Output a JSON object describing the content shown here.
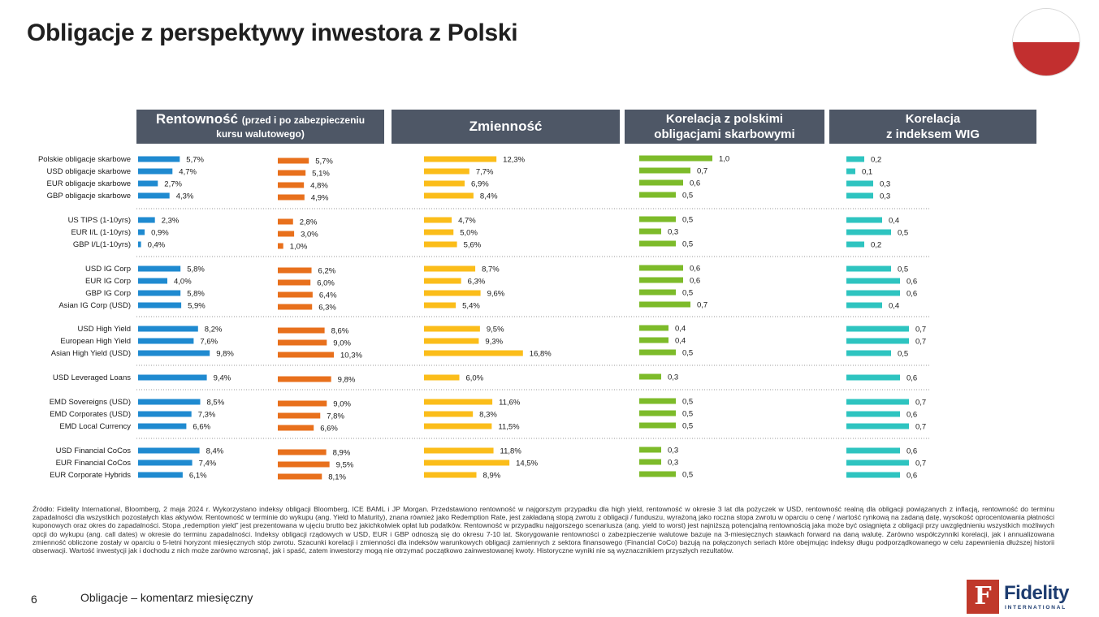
{
  "page": {
    "title": "Obligacje z perspektywy inwestora z Polski",
    "page_number": "6",
    "doc_title": "Obligacje – komentarz miesięczny",
    "logo_name": "Fidelity",
    "logo_sub": "INTERNATIONAL",
    "logo_mark": "F",
    "footnote": "Źródło: Fidelity International, Bloomberg, 2 maja 2024 r. Wykorzystano indeksy obligacji Bloomberg, ICE BAML i JP Morgan. Przedstawiono rentowność w najgorszym przypadku dla high yield, rentowność w okresie 3 lat dla pożyczek w USD, rentowność realną dla obligacji powiązanych z inflacją, rentowność do terminu zapadalności dla wszystkich pozostałych klas aktywów. Rentowność w terminie do wykupu (ang. Yield to Maturity), znana również jako Redemption Rate, jest zakładaną stopą zwrotu z obligacji / funduszu, wyrażoną jako roczna stopa zwrotu w oparciu o cenę / wartość rynkową na zadaną datę, wysokość oprocentowania płatności kuponowych oraz okres do zapadalności. Stopa „redemption yield” jest prezentowana w ujęciu brutto bez jakichkolwiek opłat lub podatków. Rentowność w przypadku najgorszego scenariusza (ang. yield to worst) jest najniższą potencjalną rentownością jaka może być osiągnięta z obligacji przy uwzględnieniu wszystkich możliwych opcji do wykupu (ang. call dates) w okresie do terminu zapadalności. Indeksy obligacji rządowych w USD, EUR i GBP odnoszą się do okresu 7-10 lat. Skorygowanie rentowności o zabezpieczenie walutowe bazuje na 3-miesięcznych stawkach forward na daną walutę. Zarówno współczynniki korelacji, jak i annualizowana zmienność obliczone zostały w oparciu o 5-letni horyzont miesięcznych stóp zwrotu. Szacunki korelacji i zmienności dla indeksów warunkowych obligacji zamiennych z sektora finansowego (Financial CoCo) bazują na  połączonych seriach które obejmując indeksy długu podporządkowanego w celu zapewnienia dłuższej historii obserwacji. Wartość inwestycji jak i dochodu z nich może zarówno wzrosnąć, jak i spaść, zatem inwestorzy mogą nie otrzymać początkowo zainwestowanej kwoty. Historyczne wyniki nie są wyznacznikiem przyszłych rezultatów."
  },
  "headers": {
    "rent_main": "Rentowność",
    "rent_sub1": "(przed i po zabezpieczeniu",
    "rent_sub2": "kursu walutowego)",
    "vol": "Zmienność",
    "corr_pl_1": "Korelacja z polskimi",
    "corr_pl_2": "obligacjami skarbowymi",
    "corr_wig_1": "Korelacja",
    "corr_wig_2": "z indeksem WIG"
  },
  "colors": {
    "header_bg": "#4e5766",
    "yield": "#1f8ad0",
    "yield_hedged": "#e8701c",
    "volatility": "#fbbd1a",
    "corr_pl": "#7dbb2a",
    "corr_wig": "#2ec4c0",
    "separator": "#9a9a9a"
  },
  "chart_data": {
    "type": "bar",
    "orientation": "horizontal",
    "categories": [
      "Polskie obligacje skarbowe",
      "USD obligacje skarbowe",
      "EUR obligacje skarbowe",
      "GBP obligacje skarbowe",
      "US TIPS (1-10yrs)",
      "EUR I/L (1-10yrs)",
      "GBP I/L(1-10yrs)",
      "USD IG Corp",
      "EUR IG Corp",
      "GBP IG Corp",
      "Asian IG Corp (USD)",
      "USD High Yield",
      "European High Yield",
      "Asian High Yield (USD)",
      "USD Leveraged Loans",
      "EMD Sovereigns (USD)",
      "EMD Corporates (USD)",
      "EMD Local Currency",
      "USD Financial CoCos",
      "EUR Financial CoCos",
      "EUR Corporate Hybrids"
    ],
    "groups": [
      4,
      3,
      4,
      3,
      1,
      3,
      3
    ],
    "series": [
      {
        "name": "Rentowność",
        "values": [
          5.7,
          4.7,
          2.7,
          4.3,
          2.3,
          0.9,
          0.4,
          5.8,
          4.0,
          5.8,
          5.9,
          8.2,
          7.6,
          9.8,
          9.4,
          8.5,
          7.3,
          6.6,
          8.4,
          7.4,
          6.1
        ],
        "labels": [
          "5,7%",
          "4,7%",
          "2,7%",
          "4,3%",
          "2,3%",
          "0,9%",
          "0,4%",
          "5,8%",
          "4,0%",
          "5,8%",
          "5,9%",
          "8,2%",
          "7,6%",
          "9,8%",
          "9,4%",
          "8,5%",
          "7,3%",
          "6,6%",
          "8,4%",
          "7,4%",
          "6,1%"
        ]
      },
      {
        "name": "Rentowność (po zabezpieczeniu kursu walutowego)",
        "values": [
          5.7,
          5.1,
          4.8,
          4.9,
          2.8,
          3.0,
          1.0,
          6.2,
          6.0,
          6.4,
          6.3,
          8.6,
          9.0,
          10.3,
          9.8,
          9.0,
          7.8,
          6.6,
          8.9,
          9.5,
          8.1
        ],
        "labels": [
          "5,7%",
          "5,1%",
          "4,8%",
          "4,9%",
          "2,8%",
          "3,0%",
          "1,0%",
          "6,2%",
          "6,0%",
          "6,4%",
          "6,3%",
          "8,6%",
          "9,0%",
          "10,3%",
          "9,8%",
          "9,0%",
          "7,8%",
          "6,6%",
          "8,9%",
          "9,5%",
          "8,1%"
        ]
      },
      {
        "name": "Zmienność",
        "values": [
          12.3,
          7.7,
          6.9,
          8.4,
          4.7,
          5.0,
          5.6,
          8.7,
          6.3,
          9.6,
          5.4,
          9.5,
          9.3,
          16.8,
          6.0,
          11.6,
          8.3,
          11.5,
          11.8,
          14.5,
          8.9
        ],
        "labels": [
          "12,3%",
          "7,7%",
          "6,9%",
          "8,4%",
          "4,7%",
          "5,0%",
          "5,6%",
          "8,7%",
          "6,3%",
          "9,6%",
          "5,4%",
          "9,5%",
          "9,3%",
          "16,8%",
          "6,0%",
          "11,6%",
          "8,3%",
          "11,5%",
          "11,8%",
          "14,5%",
          "8,9%"
        ]
      },
      {
        "name": "Korelacja z polskimi obligacjami skarbowymi",
        "values": [
          1.0,
          0.7,
          0.6,
          0.5,
          0.5,
          0.3,
          0.5,
          0.6,
          0.6,
          0.5,
          0.7,
          0.4,
          0.4,
          0.5,
          0.3,
          0.5,
          0.5,
          0.5,
          0.3,
          0.3,
          0.5
        ],
        "labels": [
          "1,0",
          "0,7",
          "0,6",
          "0,5",
          "0,5",
          "0,3",
          "0,5",
          "0,6",
          "0,6",
          "0,5",
          "0,7",
          "0,4",
          "0,4",
          "0,5",
          "0,3",
          "0,5",
          "0,5",
          "0,5",
          "0,3",
          "0,3",
          "0,5"
        ]
      },
      {
        "name": "Korelacja z indeksem WIG",
        "values": [
          0.2,
          0.1,
          0.3,
          0.3,
          0.4,
          0.5,
          0.2,
          0.5,
          0.6,
          0.6,
          0.4,
          0.7,
          0.7,
          0.5,
          0.6,
          0.7,
          0.6,
          0.7,
          0.6,
          0.7,
          0.6
        ],
        "labels": [
          "0,2",
          "0,1",
          "0,3",
          "0,3",
          "0,4",
          "0,5",
          "0,2",
          "0,5",
          "0,6",
          "0,6",
          "0,4",
          "0,7",
          "0,7",
          "0,5",
          "0,6",
          "0,7",
          "0,6",
          "0,7",
          "0,6",
          "0,7",
          "0,6"
        ]
      }
    ]
  }
}
